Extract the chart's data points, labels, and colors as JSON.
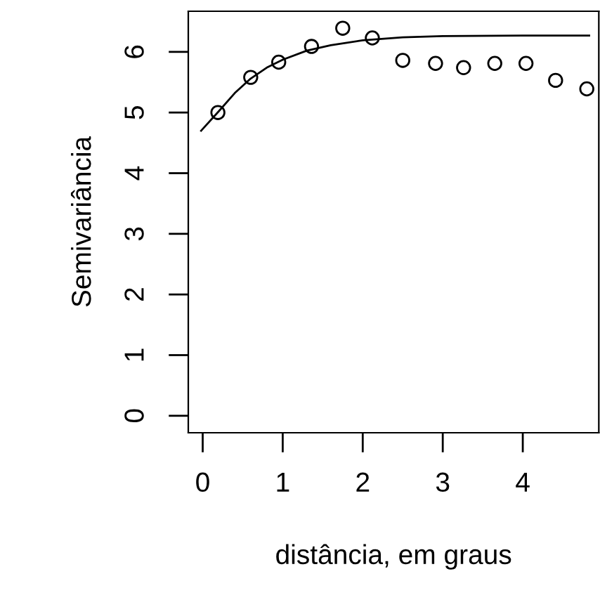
{
  "chart_data": {
    "type": "scatter",
    "xlabel": "distância, em graus",
    "ylabel": "Semivariância",
    "xlim": [
      -0.18,
      4.95
    ],
    "ylim": [
      -0.28,
      6.67
    ],
    "xticks": [
      0,
      1,
      2,
      3,
      4
    ],
    "yticks": [
      0,
      1,
      2,
      3,
      4,
      5,
      6
    ],
    "grid": false,
    "legend": false,
    "series": [
      {
        "marker": "circle",
        "color": "#000000",
        "x": [
          0.19,
          0.6,
          0.95,
          1.36,
          1.75,
          2.12,
          2.5,
          2.91,
          3.26,
          3.65,
          4.04,
          4.41,
          4.8
        ],
        "values": [
          5.0,
          5.58,
          5.83,
          6.09,
          6.39,
          6.23,
          5.86,
          5.81,
          5.74,
          5.81,
          5.81,
          5.53,
          5.39
        ]
      },
      {
        "type": "line",
        "marker": "none",
        "line_style": "solid",
        "color": "#000000",
        "x": [
          -0.02,
          0.2,
          0.4,
          0.6,
          0.8,
          1.0,
          1.3,
          1.6,
          2.0,
          2.5,
          3.0,
          4.0,
          4.83
        ],
        "values": [
          4.7,
          5.02,
          5.32,
          5.56,
          5.74,
          5.87,
          6.02,
          6.11,
          6.19,
          6.24,
          6.26,
          6.27,
          6.27
        ]
      }
    ]
  }
}
